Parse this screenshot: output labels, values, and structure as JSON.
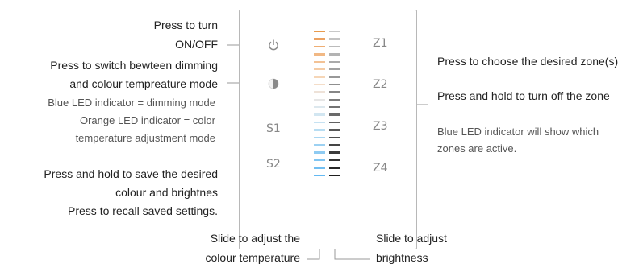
{
  "callouts": {
    "power": [
      "Press to turn",
      "ON/OFF"
    ],
    "mode": [
      "Press to switch bewteen dimming",
      "and colour tempreature mode"
    ],
    "mode_note": [
      "Blue LED indicator = dimming mode",
      "Orange LED indicator = color",
      "temperature adjustment mode"
    ],
    "save": [
      "Press and hold to save the desired",
      "colour and brightnes",
      "Press  to recall saved settings."
    ],
    "zone": [
      "Press to choose the desired zone(s)",
      "Press and hold to turn off the zone"
    ],
    "zone_note": [
      "Blue LED indicator will show which",
      "zones are active."
    ],
    "cct_slider": [
      "Slide to adjust the",
      "colour temperature"
    ],
    "brightness_slider": [
      "Slide to adjust",
      "brightness"
    ]
  },
  "panel": {
    "scene_buttons": [
      "S1",
      "S2"
    ],
    "zone_buttons": [
      "Z1",
      "Z2",
      "Z3",
      "Z4"
    ],
    "icons": {
      "power": "power-icon",
      "mode": "half-circle-mode-icon"
    },
    "slider_colors": {
      "cct": [
        "#e89a4c",
        "#eca262",
        "#efae73",
        "#f1b884",
        "#f3c295",
        "#f5cca6",
        "#f6d6b7",
        "#f4ddc8",
        "#eee2d8",
        "#e6e6e6",
        "#dde8ee",
        "#d2e6f1",
        "#c6e2f2",
        "#b8ddf2",
        "#aad7f2",
        "#9cd1f2",
        "#8ecbf2",
        "#80c5f2",
        "#72bff2",
        "#64b9f2"
      ],
      "brightness": [
        "#c8c8c8",
        "#c3c3c3",
        "#bbbbbb",
        "#b3b3b3",
        "#aaaaaa",
        "#a1a1a1",
        "#989898",
        "#8f8f8f",
        "#868686",
        "#7c7c7c",
        "#737373",
        "#6a6a6a",
        "#616161",
        "#575757",
        "#4e4e4e",
        "#454545",
        "#3b3b3b",
        "#323232",
        "#282828",
        "#1f1f1f"
      ]
    }
  }
}
